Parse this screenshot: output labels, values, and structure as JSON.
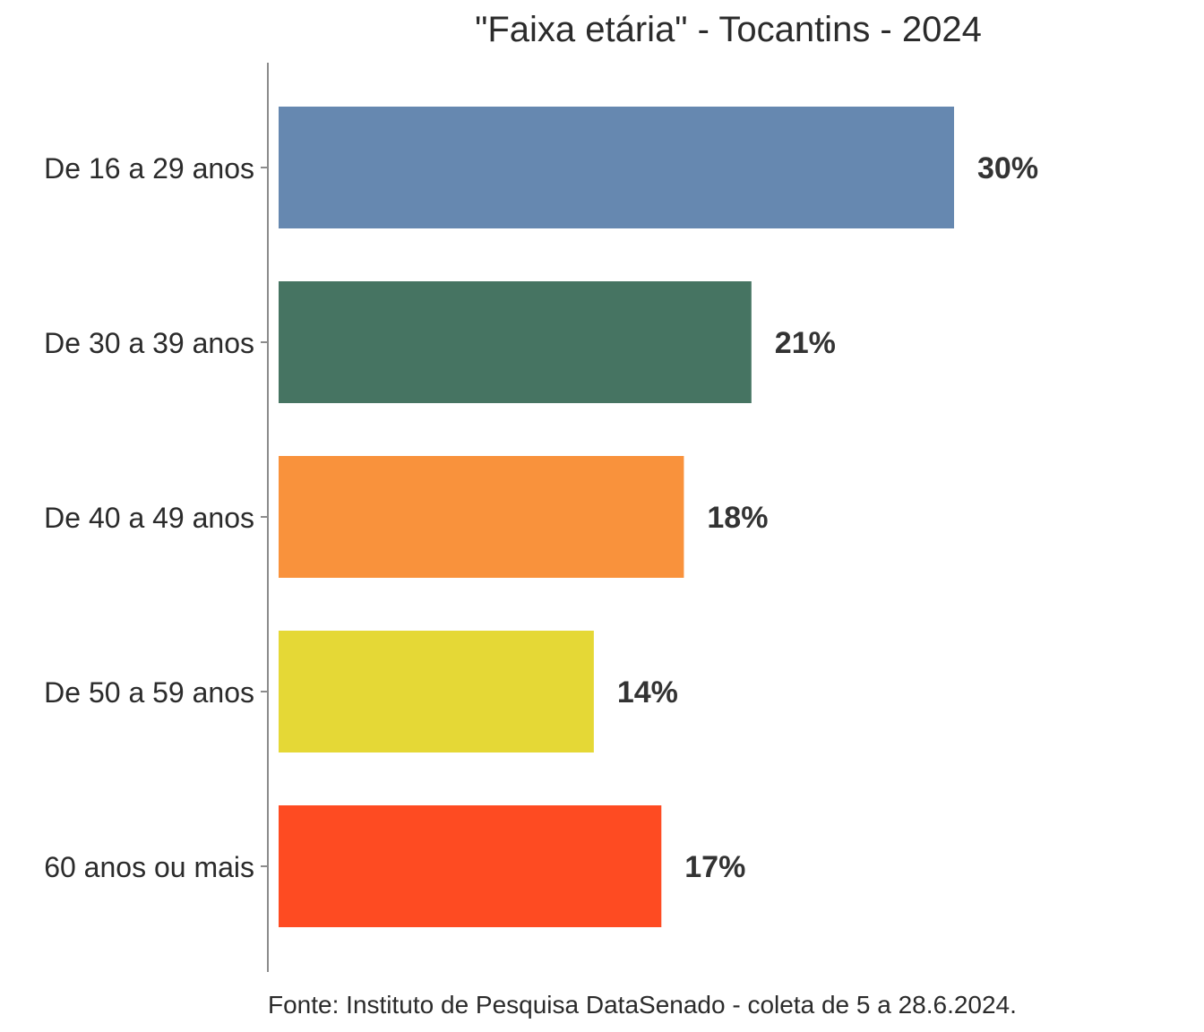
{
  "chart_data": {
    "type": "bar",
    "orientation": "horizontal",
    "title": "\"Faixa etária\" - Tocantins - 2024",
    "categories": [
      "De 16 a 29 anos",
      "De 30 a 39 anos",
      "De 40 a 49 anos",
      "De 50 a 59 anos",
      "60 anos ou mais"
    ],
    "values": [
      30,
      21,
      18,
      14,
      17
    ],
    "data_labels": [
      "30%",
      "21%",
      "18%",
      "14%",
      "17%"
    ],
    "colors": [
      "#6688b0",
      "#467462",
      "#f9923c",
      "#e5d836",
      "#fe4b22"
    ],
    "xlabel": "",
    "ylabel": "",
    "xlim": [
      0,
      30
    ],
    "grid": false,
    "legend": "none",
    "caption": "Fonte: Instituto de Pesquisa DataSenado - coleta de 5 a 28.6.2024."
  }
}
